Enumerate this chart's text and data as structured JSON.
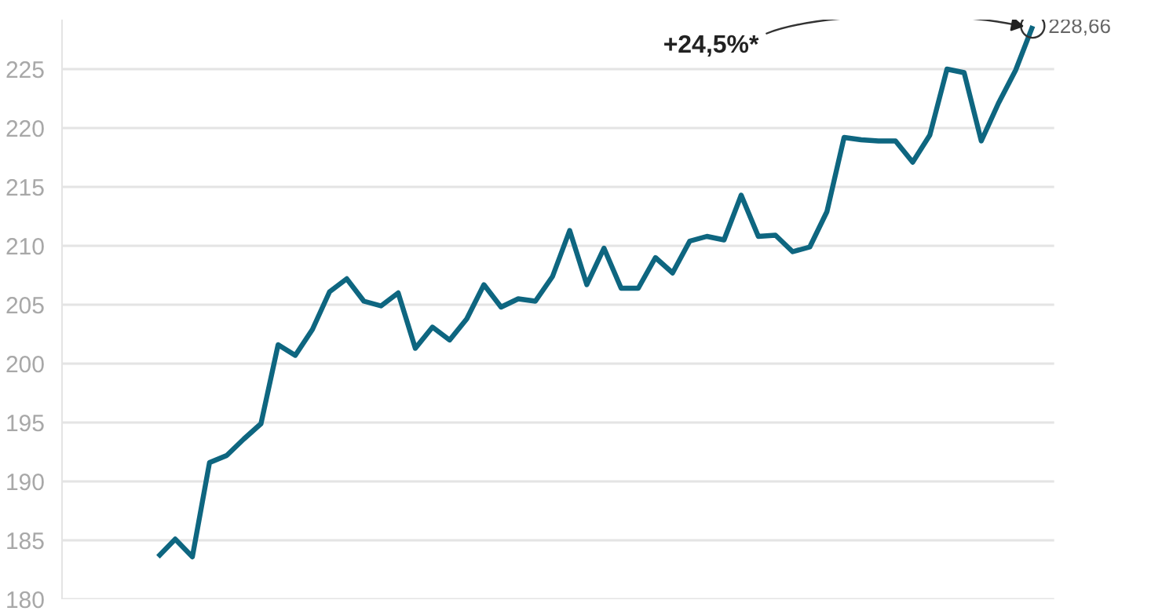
{
  "chart_data": {
    "type": "line",
    "categories": [
      null,
      null,
      null,
      null,
      null,
      null,
      null,
      null,
      null,
      null,
      null,
      null,
      null,
      null,
      null,
      null,
      null,
      null,
      null,
      null,
      null,
      null,
      null,
      null,
      null,
      null,
      null,
      null,
      null,
      null,
      null,
      null,
      null,
      null,
      null,
      null,
      null,
      null,
      null,
      null,
      null,
      null,
      null,
      null,
      null,
      null,
      null,
      null,
      null,
      null,
      null,
      null
    ],
    "series": [
      {
        "color": "#0e6680",
        "values": [
          183.6,
          185.1,
          183.6,
          191.6,
          192.2,
          193.6,
          194.9,
          201.6,
          200.7,
          202.9,
          206.1,
          207.2,
          205.3,
          204.9,
          206.0,
          201.3,
          203.1,
          202.0,
          203.8,
          206.7,
          204.8,
          205.5,
          205.3,
          207.4,
          211.3,
          206.7,
          209.8,
          206.4,
          206.4,
          209.0,
          207.7,
          210.4,
          210.8,
          210.5,
          214.3,
          210.8,
          210.9,
          209.5,
          209.9,
          212.9,
          219.2,
          219.0,
          218.9,
          218.9,
          217.1,
          219.4,
          225.0,
          224.7,
          218.9,
          222.1,
          224.9,
          228.66
        ],
        "value_labels": [
          null,
          null,
          null,
          null,
          null,
          null,
          null,
          null,
          null,
          null,
          null,
          null,
          null,
          null,
          null,
          null,
          null,
          null,
          null,
          null,
          null,
          null,
          null,
          null,
          null,
          null,
          null,
          null,
          null,
          null,
          null,
          null,
          null,
          null,
          null,
          null,
          null,
          null,
          null,
          null,
          null,
          null,
          null,
          null,
          null,
          null,
          null,
          null,
          null,
          null,
          null,
          "228,66"
        ]
      }
    ],
    "annotations": [
      "+24,5%*"
    ],
    "ylim": [
      180,
      229.2
    ],
    "yticks": [
      180,
      185,
      190,
      195,
      200,
      205,
      210,
      215,
      220,
      225
    ],
    "grid": "y",
    "tick_labels": "y",
    "marker": "none",
    "line_style": "solid"
  }
}
